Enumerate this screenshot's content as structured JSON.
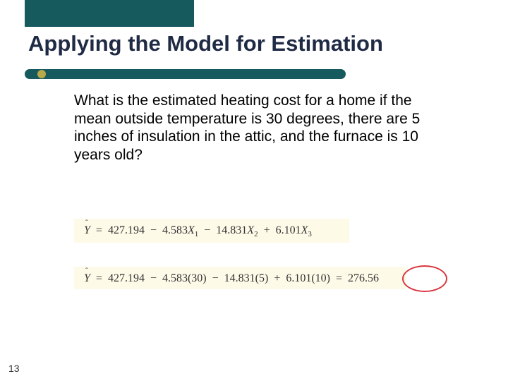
{
  "title": "Applying the Model for Estimation",
  "question": "What is the estimated heating cost for a home if the mean outside temperature is 30 degrees, there are 5 inches of insulation in the attic, and the furnace is 10 years old?",
  "equation1": {
    "lhs": "Ŷ",
    "intercept": "427.194",
    "b1": "4.583",
    "b2": "14.831",
    "b3": "6.101",
    "x1": "X₁",
    "x2": "X₂",
    "x3": "X₃"
  },
  "equation2": {
    "lhs": "Ŷ",
    "intercept": "427.194",
    "b1": "4.583",
    "x1val": "(30)",
    "b2": "14.831",
    "x2val": "(5)",
    "b3": "6.101",
    "x3val": "(10)",
    "result": "276.56"
  },
  "slideNumber": "13",
  "colors": {
    "headerTeal": "#165a5e",
    "bulletGold": "#b7a84a",
    "eqBg": "#fdfae8",
    "circleRed": "#d9363e"
  }
}
